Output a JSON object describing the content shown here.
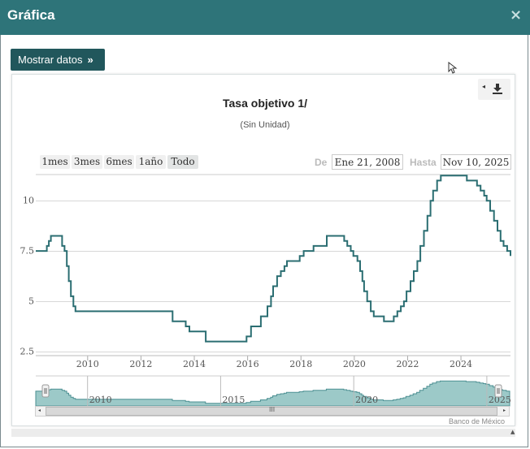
{
  "dialog": {
    "title": "Gráfica",
    "close_symbol": "×",
    "close_icon": "close-icon"
  },
  "toolbar": {
    "show_data_label": "Mostrar datos",
    "show_data_chevron": "»"
  },
  "export_menu": {
    "icon": "download-icon",
    "arrow": "◂"
  },
  "range_selector": {
    "buttons": [
      "1mes",
      "3mes",
      "6mes",
      "1año",
      "Todo"
    ],
    "selected": "Todo",
    "from_label": "De",
    "from_value": "Ene 21, 2008",
    "to_label": "Hasta",
    "to_value": "Nov 10, 2025"
  },
  "navigator": {
    "labels": [
      "2010",
      "2015",
      "2020",
      "2025"
    ],
    "grip": "III",
    "left_arrow": "◂",
    "right_arrow": "▸"
  },
  "credits": "Banco de México",
  "footer": {
    "scroll_up": "▲"
  },
  "colors": {
    "titlebar": "#2e7479",
    "button": "#21575c",
    "series": "#2b6e72",
    "navigator_fill": "#9cc9c8"
  },
  "chart_data": {
    "type": "line",
    "step": true,
    "title": "Tasa objetivo 1/",
    "subtitle": "(Sin Unidad)",
    "xlabel": "",
    "ylabel": "",
    "x_ticks": [
      "2010",
      "2012",
      "2014",
      "2016",
      "2018",
      "2020",
      "2022",
      "2024"
    ],
    "y_ticks": [
      "2.5",
      "5",
      "7.5",
      "10"
    ],
    "ylim": [
      2.5,
      11.5
    ],
    "xlim": [
      "2008-01-21",
      "2025-11-10"
    ],
    "grid": true,
    "legend": "none",
    "series": [
      {
        "x": [
          "2008-01-21",
          "2008-06-20",
          "2008-07-18",
          "2008-08-15",
          "2009-01-16",
          "2009-02-20",
          "2009-03-20",
          "2009-04-17",
          "2009-05-15",
          "2009-06-19",
          "2009-07-17",
          "2013-03-08",
          "2013-09-06",
          "2013-10-25",
          "2014-06-06",
          "2015-12-17",
          "2016-02-17",
          "2016-06-30",
          "2016-09-29",
          "2016-11-17",
          "2016-12-15",
          "2017-02-09",
          "2017-03-30",
          "2017-05-18",
          "2017-06-22",
          "2017-12-14",
          "2018-02-08",
          "2018-06-21",
          "2018-12-20",
          "2019-08-15",
          "2019-09-26",
          "2019-11-14",
          "2019-12-19",
          "2020-02-13",
          "2020-03-20",
          "2020-04-21",
          "2020-05-14",
          "2020-06-25",
          "2020-08-13",
          "2020-09-24",
          "2021-02-11",
          "2021-03-25",
          "2021-06-24",
          "2021-08-12",
          "2021-09-30",
          "2021-11-11",
          "2021-12-16",
          "2022-02-10",
          "2022-03-24",
          "2022-05-12",
          "2022-06-23",
          "2022-08-11",
          "2022-09-29",
          "2022-11-10",
          "2022-12-15",
          "2023-02-09",
          "2023-03-30",
          "2024-03-21",
          "2024-06-27",
          "2024-08-08",
          "2024-09-26",
          "2024-11-14",
          "2024-12-19",
          "2025-02-06",
          "2025-03-27",
          "2025-05-15",
          "2025-06-26",
          "2025-08-07",
          "2025-09-25",
          "2025-11-10"
        ],
        "y": [
          7.5,
          7.75,
          8.0,
          8.25,
          7.75,
          7.5,
          6.75,
          6.0,
          5.25,
          4.75,
          4.5,
          4.0,
          3.75,
          3.5,
          3.0,
          3.25,
          3.75,
          4.25,
          4.75,
          5.25,
          5.75,
          6.25,
          6.5,
          6.75,
          7.0,
          7.25,
          7.5,
          7.75,
          8.25,
          8.0,
          7.75,
          7.5,
          7.25,
          7.0,
          6.5,
          6.0,
          5.5,
          5.0,
          4.5,
          4.25,
          4.0,
          4.0,
          4.25,
          4.5,
          4.75,
          5.0,
          5.5,
          6.0,
          6.5,
          7.0,
          7.75,
          8.5,
          9.25,
          10.0,
          10.5,
          11.0,
          11.25,
          11.0,
          11.0,
          10.75,
          10.5,
          10.25,
          10.0,
          9.5,
          9.0,
          8.5,
          8.0,
          7.75,
          7.5,
          7.25
        ]
      }
    ]
  }
}
